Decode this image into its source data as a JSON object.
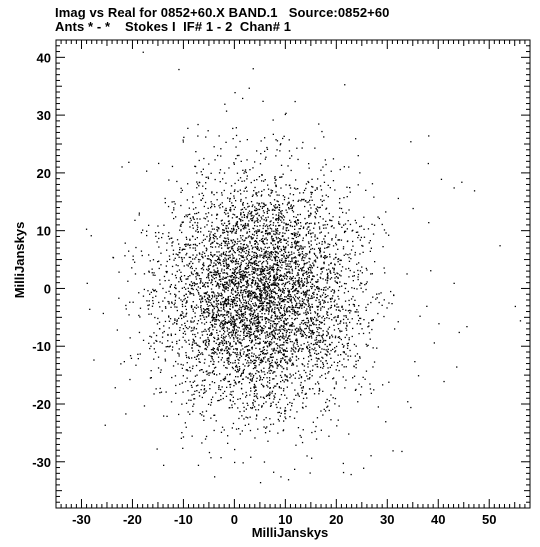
{
  "header": {
    "title_line1": "Imag vs Real for 0852+60.X BAND.1   Source:0852+60",
    "title_line2": "Ants * - *    Stokes I  IF# 1 - 2  Chan# 1"
  },
  "chart_data": {
    "type": "scatter",
    "title": "Imag vs Real for 0852+60.X BAND.1   Source:0852+60",
    "subtitle": "Ants * - *    Stokes I  IF# 1 - 2  Chan# 1",
    "xlabel": "MilliJanskys",
    "ylabel": "MilliJanskys",
    "xlim": [
      -35,
      58
    ],
    "ylim": [
      -38,
      43
    ],
    "x_ticks": [
      -30,
      -20,
      -10,
      0,
      10,
      20,
      30,
      40,
      50
    ],
    "y_ticks": [
      -30,
      -20,
      -10,
      0,
      10,
      20,
      30,
      40
    ],
    "x_tick_labels": [
      "-30",
      "-20",
      "-10",
      "0",
      "10",
      "20",
      "30",
      "40",
      "50"
    ],
    "y_tick_labels": [
      "-30",
      "-20",
      "-10",
      "0",
      "10",
      "20",
      "30",
      "40"
    ],
    "grid": false,
    "legend": "none",
    "marker_color": "#000000",
    "cloud": {
      "approx_point_count": 5500,
      "center_real": 5,
      "center_imag": -1,
      "spread_real": 11,
      "spread_imag": 11.5,
      "visible_range_real": [
        -30,
        56
      ],
      "visible_range_imag": [
        -34,
        41
      ]
    },
    "outliers": [
      {
        "x": 38,
        "y": 26.5
      },
      {
        "x": 40.5,
        "y": 19
      },
      {
        "x": 43,
        "y": 17.5
      },
      {
        "x": 44.5,
        "y": 18.5
      },
      {
        "x": 47,
        "y": 17
      },
      {
        "x": 52,
        "y": 7.5
      },
      {
        "x": 55,
        "y": -3
      },
      {
        "x": 56,
        "y": -5.5
      },
      {
        "x": 45.5,
        "y": -6.5
      },
      {
        "x": 44,
        "y": -7.5
      },
      {
        "x": 40,
        "y": -6
      },
      {
        "x": 43,
        "y": 1
      },
      {
        "x": 43.5,
        "y": -13.5
      },
      {
        "x": 34.5,
        "y": 25.5
      },
      {
        "x": 38,
        "y": 11.5
      },
      {
        "x": -29,
        "y": 1
      },
      {
        "x": -28.5,
        "y": -3.5
      },
      {
        "x": -18,
        "y": 41
      },
      {
        "x": -11,
        "y": 38
      },
      {
        "x": 0,
        "y": 34
      },
      {
        "x": 1.5,
        "y": 33
      },
      {
        "x": -2,
        "y": 32
      },
      {
        "x": 5.5,
        "y": 32.5
      },
      {
        "x": -4,
        "y": -32.5
      },
      {
        "x": 5,
        "y": -33.5
      },
      {
        "x": 9,
        "y": -32.5
      },
      {
        "x": 10.5,
        "y": -33
      },
      {
        "x": -14,
        "y": -30.5
      },
      {
        "x": 36,
        "y": -15
      },
      {
        "x": 34.5,
        "y": -20.5
      },
      {
        "x": 41,
        "y": -16
      },
      {
        "x": 31,
        "y": -28
      }
    ]
  }
}
